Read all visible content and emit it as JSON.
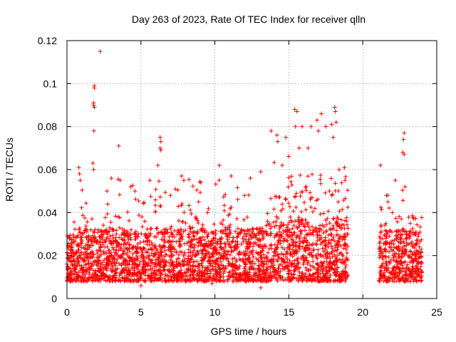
{
  "chart_data": {
    "type": "scatter",
    "title": "Day 263 of 2023, Rate Of TEC Index for receiver qlln",
    "xlabel": "GPS time / hours",
    "ylabel": "ROTI / TECUs",
    "xlim": [
      0,
      25
    ],
    "ylim": [
      0,
      0.12
    ],
    "xticks": [
      "0",
      "5",
      "10",
      "15",
      "20",
      "25"
    ],
    "yticks": [
      "0",
      "0.02",
      "0.04",
      "0.06",
      "0.08",
      "0.1",
      "0.12"
    ],
    "grid": true,
    "marker": "plus",
    "color": "#ff0000",
    "coverage": [
      [
        0,
        19.0
      ],
      [
        21.1,
        24.0
      ]
    ],
    "baseline_band": [
      0.008,
      0.03
    ],
    "series": [
      {
        "points": [
          [
            2.25,
            0.115
          ],
          [
            1.85,
            0.099
          ],
          [
            1.85,
            0.098
          ],
          [
            1.8,
            0.091
          ],
          [
            1.8,
            0.09
          ],
          [
            1.85,
            0.089
          ],
          [
            1.82,
            0.078
          ],
          [
            3.5,
            0.071
          ],
          [
            6.3,
            0.075
          ],
          [
            6.35,
            0.073
          ],
          [
            6.3,
            0.07
          ],
          [
            6.35,
            0.069
          ],
          [
            0.8,
            0.061
          ],
          [
            0.85,
            0.058
          ],
          [
            0.9,
            0.055
          ],
          [
            1.75,
            0.063
          ],
          [
            1.8,
            0.06
          ],
          [
            3.0,
            0.056
          ],
          [
            3.6,
            0.055
          ],
          [
            5.6,
            0.055
          ],
          [
            6.15,
            0.062
          ],
          [
            7.75,
            0.057
          ],
          [
            7.9,
            0.055
          ],
          [
            10.3,
            0.062
          ],
          [
            11.1,
            0.057
          ],
          [
            12.4,
            0.056
          ],
          [
            13.1,
            0.059
          ],
          [
            13.8,
            0.078
          ],
          [
            14.2,
            0.076
          ],
          [
            14.25,
            0.073
          ],
          [
            14.55,
            0.062
          ],
          [
            14.8,
            0.075
          ],
          [
            15.4,
            0.088
          ],
          [
            15.55,
            0.087
          ],
          [
            15.45,
            0.08
          ],
          [
            15.7,
            0.07
          ],
          [
            15.9,
            0.08
          ],
          [
            16.5,
            0.08
          ],
          [
            16.9,
            0.083
          ],
          [
            17.2,
            0.086
          ],
          [
            17.5,
            0.08
          ],
          [
            17.9,
            0.081
          ],
          [
            18.1,
            0.089
          ],
          [
            18.15,
            0.087
          ],
          [
            18.2,
            0.082
          ],
          [
            17.0,
            0.078
          ],
          [
            18.0,
            0.075
          ],
          [
            16.3,
            0.07
          ],
          [
            18.4,
            0.06
          ],
          [
            18.8,
            0.055
          ],
          [
            21.2,
            0.062
          ],
          [
            22.8,
            0.077
          ],
          [
            22.75,
            0.074
          ],
          [
            22.7,
            0.068
          ],
          [
            22.8,
            0.067
          ],
          [
            22.85,
            0.052
          ],
          [
            22.2,
            0.055
          ],
          [
            23.2,
            0.035
          ],
          [
            21.7,
            0.045
          ],
          [
            22.0,
            0.04
          ],
          [
            23.5,
            0.03
          ],
          [
            13.1,
            0.005
          ],
          [
            13.5,
            0.008
          ],
          [
            5.0,
            0.006
          ],
          [
            9.8,
            0.007
          ],
          [
            0.1,
            0.014
          ],
          [
            0.3,
            0.01
          ],
          [
            0.5,
            0.009
          ],
          [
            0.05,
            0.015
          ],
          [
            0.2,
            0.012
          ],
          [
            8.9,
            0.045
          ],
          [
            9.5,
            0.04
          ],
          [
            12.0,
            0.048
          ],
          [
            4.6,
            0.05
          ],
          [
            2.7,
            0.05
          ],
          [
            7.0,
            0.048
          ]
        ]
      }
    ]
  }
}
